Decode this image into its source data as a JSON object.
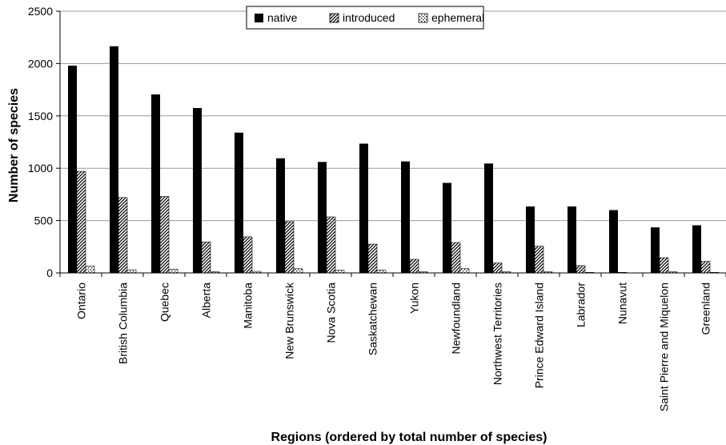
{
  "chart_data": {
    "type": "bar",
    "title": "",
    "xlabel": "Regions (ordered by total number of species)",
    "ylabel": "Number of species",
    "ylim": [
      0,
      2500
    ],
    "yticks": [
      0,
      500,
      1000,
      1500,
      2000,
      2500
    ],
    "grid": true,
    "legend_position": "top-center",
    "categories": [
      "Ontario",
      "British Columbia",
      "Quebec",
      "Alberta",
      "Manitoba",
      "New Brunswick",
      "Nova Scotia",
      "Saskatchewan",
      "Yukon",
      "Newfoundland",
      "Northwest Territories",
      "Prince Edward Island",
      "Labrador",
      "Nunavut",
      "Saint Pierre and Miquelon",
      "Greenland"
    ],
    "series": [
      {
        "name": "native",
        "pattern": "solid",
        "color": "#000000",
        "values": [
          1980,
          2165,
          1705,
          1575,
          1340,
          1095,
          1060,
          1235,
          1065,
          860,
          1045,
          635,
          635,
          600,
          435,
          455
        ]
      },
      {
        "name": "introduced",
        "pattern": "diagonal-hatch",
        "color": "#555555",
        "values": [
          970,
          720,
          730,
          295,
          345,
          490,
          535,
          275,
          130,
          290,
          95,
          255,
          70,
          5,
          145,
          110
        ]
      },
      {
        "name": "ephemeral",
        "pattern": "dotted",
        "color": "#ffffff",
        "values": [
          65,
          30,
          35,
          10,
          15,
          40,
          25,
          25,
          10,
          40,
          10,
          10,
          5,
          0,
          10,
          5
        ]
      }
    ]
  }
}
